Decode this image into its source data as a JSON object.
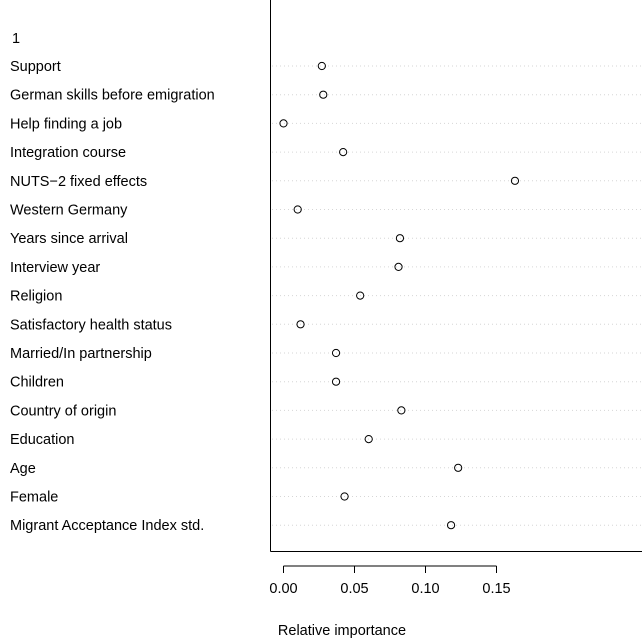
{
  "chart_data": {
    "type": "scatter",
    "title": "",
    "group_label": "1",
    "xlabel": "Relative importance",
    "ylabel": "",
    "xlim": [
      -0.006,
      0.163
    ],
    "x_ticks": [
      0.0,
      0.05,
      0.1,
      0.15
    ],
    "x_tick_labels": [
      "0.00",
      "0.05",
      "0.10",
      "0.15"
    ],
    "grid": "dotted horizontal guide per variable",
    "point_style": "open circle",
    "categories": [
      "Support",
      "German skills before emigration",
      "Help finding a job",
      "Integration course",
      "NUTS−2 fixed effects",
      "Western Germany",
      "Years since arrival",
      "Interview year",
      "Religion",
      "Satisfactory health status",
      "Married/In partnership",
      "Children",
      "Country of origin",
      "Education",
      "Age",
      "Female",
      "Migrant Acceptance Index std."
    ],
    "values": [
      0.027,
      0.028,
      0.0,
      0.042,
      0.163,
      0.01,
      0.082,
      0.081,
      0.054,
      0.012,
      0.037,
      0.037,
      0.083,
      0.06,
      0.123,
      0.043,
      0.118
    ]
  }
}
